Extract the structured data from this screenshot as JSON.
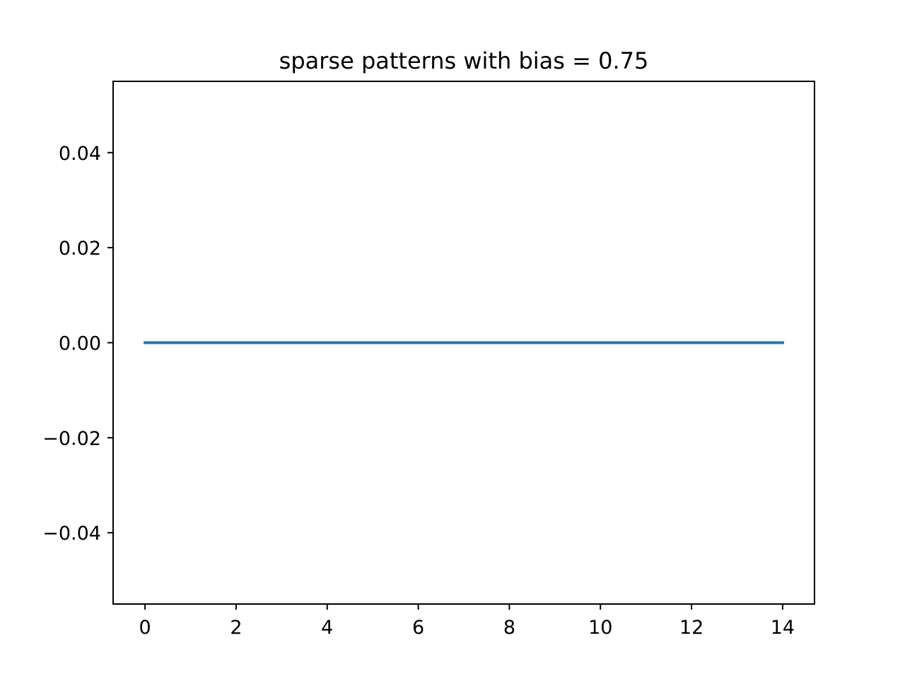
{
  "chart_data": {
    "type": "line",
    "title": "sparse patterns with bias = 0.75",
    "xlabel": "",
    "ylabel": "",
    "x": [
      0,
      1,
      2,
      3,
      4,
      5,
      6,
      7,
      8,
      9,
      10,
      11,
      12,
      13,
      14
    ],
    "series": [
      {
        "values": [
          0,
          0,
          0,
          0,
          0,
          0,
          0,
          0,
          0,
          0,
          0,
          0,
          0,
          0,
          0
        ],
        "color": "#1f77b4"
      }
    ],
    "xlim": [
      -0.7,
      14.7
    ],
    "ylim": [
      -0.055,
      0.055
    ],
    "xticks": [
      0,
      2,
      4,
      6,
      8,
      10,
      12,
      14
    ],
    "xtick_labels": [
      "0",
      "2",
      "4",
      "6",
      "8",
      "10",
      "12",
      "14"
    ],
    "yticks": [
      0.04,
      0.02,
      0.0,
      -0.02,
      -0.04
    ],
    "ytick_labels": [
      "0.04",
      "0.02",
      "0.00",
      "−0.02",
      "−0.04"
    ],
    "grid": false,
    "legend": "none"
  }
}
